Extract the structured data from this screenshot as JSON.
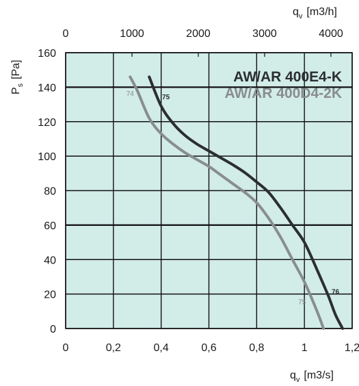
{
  "chart_data": {
    "type": "line",
    "x": {
      "label": "q",
      "label_sub": "v",
      "unit": "[m3/s]",
      "range": [
        0,
        1.2
      ],
      "tick_values": [
        0,
        0.2,
        0.4,
        0.6,
        0.8,
        1.0,
        1.2
      ],
      "tick_labels": [
        "0",
        "0,2",
        "0,4",
        "0,6",
        "0,8",
        "1",
        "1,2"
      ]
    },
    "x_top": {
      "label": "q",
      "label_sub": "v",
      "unit": "[m3/h]",
      "range": [
        0,
        4320
      ],
      "tick_values": [
        0,
        1000,
        2000,
        3000,
        4000
      ],
      "tick_labels": [
        "0",
        "1000",
        "2000",
        "3000",
        "4000"
      ]
    },
    "y": {
      "label": "P",
      "label_sub": "s",
      "unit": "[Pa]",
      "range": [
        0,
        160
      ],
      "tick_values": [
        0,
        20,
        40,
        60,
        80,
        100,
        120,
        140,
        160
      ],
      "tick_labels": [
        "0",
        "20",
        "40",
        "60",
        "80",
        "100",
        "120",
        "140",
        "160"
      ]
    },
    "grid": true,
    "background": "#d2ece8",
    "series": [
      {
        "name": "AW/AR 400E4-K",
        "color": "#2b2e31",
        "points": [
          [
            0.35,
            146
          ],
          [
            0.4,
            129
          ],
          [
            0.45,
            119
          ],
          [
            0.5,
            112
          ],
          [
            0.55,
            107
          ],
          [
            0.6,
            103
          ],
          [
            0.65,
            99
          ],
          [
            0.7,
            95
          ],
          [
            0.75,
            90.5
          ],
          [
            0.8,
            85
          ],
          [
            0.85,
            79
          ],
          [
            0.9,
            70
          ],
          [
            0.95,
            60
          ],
          [
            1.0,
            50
          ],
          [
            1.05,
            35
          ],
          [
            1.1,
            19
          ],
          [
            1.13,
            8
          ],
          [
            1.16,
            0
          ]
        ],
        "point_labels": [
          {
            "text": "75",
            "x": 0.42,
            "y": 133
          },
          {
            "text": "76",
            "x": 1.13,
            "y": 20
          }
        ]
      },
      {
        "name": "AW/AR 400D4-2K",
        "color": "#888d8e",
        "points": [
          [
            0.27,
            146
          ],
          [
            0.3,
            138
          ],
          [
            0.35,
            122
          ],
          [
            0.4,
            113
          ],
          [
            0.45,
            107
          ],
          [
            0.5,
            102
          ],
          [
            0.55,
            98
          ],
          [
            0.6,
            94
          ],
          [
            0.65,
            89
          ],
          [
            0.7,
            84
          ],
          [
            0.75,
            79
          ],
          [
            0.8,
            73
          ],
          [
            0.85,
            64
          ],
          [
            0.9,
            53
          ],
          [
            0.95,
            40
          ],
          [
            1.0,
            27
          ],
          [
            1.05,
            11
          ],
          [
            1.08,
            0
          ]
        ],
        "point_labels": [
          {
            "text": "74",
            "x": 0.27,
            "y": 135
          },
          {
            "text": "75",
            "x": 0.99,
            "y": 14
          }
        ]
      }
    ]
  }
}
